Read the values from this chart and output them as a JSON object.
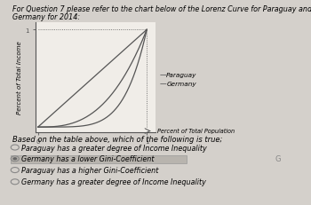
{
  "title_line1": "For Question 7 please refer to the chart below of the Lorenz Curve for Paraguay and",
  "title_line2": "Germany for 2014:",
  "ylabel": "Percent of Total Income",
  "xlabel": "Percent of Total Population",
  "legend_paraguay": "Paraguay",
  "legend_germany": "Germany",
  "bg_color": "#d4d0cb",
  "plot_bg_color": "#f0ede8",
  "line_color": "#555555",
  "answer_options": [
    "Paraguay has a greater degree of Income Inequality",
    "Germany has a lower Gini-Coefficient",
    "Paraguay has a higher Gini-Coefficient",
    "Germany has a greater degree of Income Inequality"
  ],
  "selected_option": 1,
  "title_fontsize": 5.8,
  "label_fontsize": 5.0,
  "legend_fontsize": 5.2,
  "answer_fontsize": 5.8,
  "based_fontsize": 6.0
}
